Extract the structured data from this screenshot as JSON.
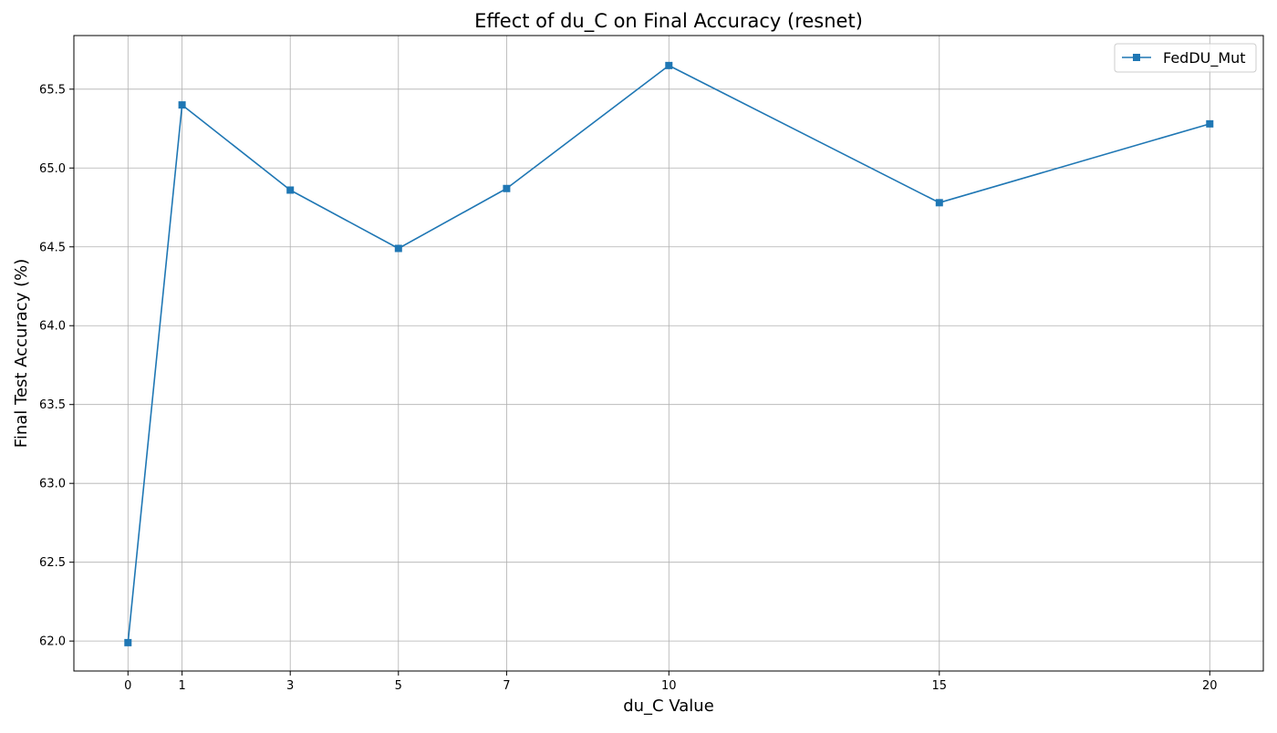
{
  "chart_data": {
    "type": "line",
    "title": "Effect of du_C on Final Accuracy (resnet)",
    "xlabel": "du_C Value",
    "ylabel": "Final Test Accuracy (%)",
    "x": [
      0,
      1,
      3,
      5,
      7,
      10,
      15,
      20
    ],
    "xticks": [
      "0",
      "1",
      "3",
      "5",
      "7",
      "10",
      "15",
      "20"
    ],
    "yticks": [
      "62.0",
      "62.5",
      "63.0",
      "63.5",
      "64.0",
      "64.5",
      "65.0",
      "65.5"
    ],
    "xlim": [
      -1,
      20.99
    ],
    "ylim": [
      61.81,
      65.84
    ],
    "grid": true,
    "legend_position": "top-right",
    "marker": "square",
    "series": [
      {
        "name": "FedDU_Mut",
        "color": "#1f77b4",
        "values": [
          61.99,
          65.4,
          64.86,
          64.49,
          64.87,
          65.65,
          64.78,
          65.28
        ]
      }
    ]
  }
}
